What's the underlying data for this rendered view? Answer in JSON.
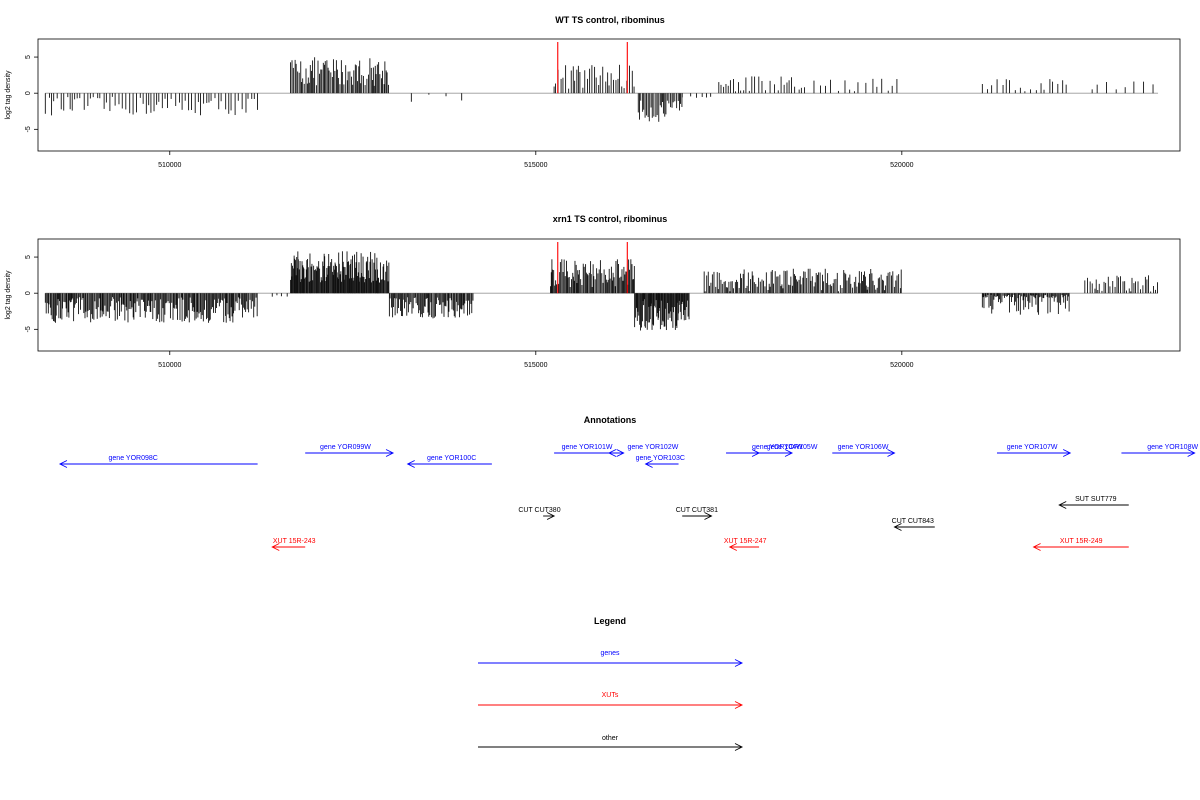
{
  "colors": {
    "gene": "#0000ff",
    "xut": "#ff0000",
    "other": "#000000",
    "axis": "#000000",
    "zero_line": "#999999",
    "highlight": "#ff0000"
  },
  "chart_data": [
    {
      "type": "bar",
      "title": "WT TS control, ribominus",
      "ylabel": "log2 tag density",
      "xlim": [
        508200,
        523800
      ],
      "ylim": [
        -8,
        7.5
      ],
      "xticks": [
        510000,
        515000,
        520000
      ],
      "xtick_labels": [
        "510000",
        "515000",
        "520000"
      ],
      "yticks": [
        -5,
        0,
        5
      ],
      "ytick_labels": [
        "-5",
        "0",
        "5"
      ],
      "highlight_positions": [
        515300,
        516250
      ],
      "segments": [
        {
          "start": 508300,
          "end": 511200,
          "mean": -1.8,
          "amp": 1.3,
          "step": 45
        },
        {
          "start": 511650,
          "end": 513000,
          "mean": 3.0,
          "amp": 2.0,
          "step": 18
        },
        {
          "start": 513300,
          "end": 514100,
          "mean": -0.6,
          "amp": 0.7,
          "step": 200
        },
        {
          "start": 515250,
          "end": 516350,
          "mean": 2.3,
          "amp": 1.8,
          "step": 30
        },
        {
          "start": 516400,
          "end": 517000,
          "mean": -2.5,
          "amp": 1.5,
          "step": 20
        },
        {
          "start": 517000,
          "end": 517400,
          "mean": -0.4,
          "amp": 0.4,
          "step": 90
        },
        {
          "start": 517500,
          "end": 518700,
          "mean": 1.2,
          "amp": 1.2,
          "step": 45
        },
        {
          "start": 518800,
          "end": 520000,
          "mean": 1.0,
          "amp": 1.2,
          "step": 80
        },
        {
          "start": 521100,
          "end": 522300,
          "mean": 1.0,
          "amp": 1.1,
          "step": 60
        },
        {
          "start": 522600,
          "end": 523500,
          "mean": 0.8,
          "amp": 0.9,
          "step": 100
        }
      ]
    },
    {
      "type": "bar",
      "title": "xrn1 TS control, ribominus",
      "ylabel": "log2 tag density",
      "xlim": [
        508200,
        523800
      ],
      "ylim": [
        -8,
        7.5
      ],
      "xticks": [
        510000,
        515000,
        520000
      ],
      "xtick_labels": [
        "510000",
        "515000",
        "520000"
      ],
      "yticks": [
        -5,
        0,
        5
      ],
      "ytick_labels": [
        "-5",
        "0",
        "5"
      ],
      "highlight_positions": [
        515300,
        516250
      ],
      "segments": [
        {
          "start": 508300,
          "end": 511200,
          "mean": -2.3,
          "amp": 1.8,
          "step": 14
        },
        {
          "start": 511400,
          "end": 511650,
          "mean": -0.5,
          "amp": 0.4,
          "step": 70
        },
        {
          "start": 511650,
          "end": 513000,
          "mean": 3.6,
          "amp": 2.2,
          "step": 10
        },
        {
          "start": 513000,
          "end": 514150,
          "mean": -2.0,
          "amp": 1.5,
          "step": 14
        },
        {
          "start": 515200,
          "end": 516350,
          "mean": 2.8,
          "amp": 2.0,
          "step": 14
        },
        {
          "start": 516350,
          "end": 517100,
          "mean": -3.0,
          "amp": 2.2,
          "step": 10
        },
        {
          "start": 517300,
          "end": 520000,
          "mean": 1.8,
          "amp": 1.6,
          "step": 18
        },
        {
          "start": 521100,
          "end": 522300,
          "mean": -0.8,
          "amp": 2.2,
          "step": 14
        },
        {
          "start": 522500,
          "end": 523500,
          "mean": 1.3,
          "amp": 1.2,
          "step": 28
        }
      ]
    },
    {
      "type": "annotation",
      "title": "Annotations",
      "features": [
        {
          "label": "gene YOR098C",
          "kind": "gene",
          "start": 511200,
          "end": 508500,
          "row": 1,
          "label_pos": 509500
        },
        {
          "label": "gene YOR099W",
          "kind": "gene",
          "start": 511850,
          "end": 513050,
          "row": 0,
          "label_pos": 512400
        },
        {
          "label": "gene YOR100C",
          "kind": "gene",
          "start": 514400,
          "end": 513250,
          "row": 1,
          "label_pos": 513850
        },
        {
          "label": "gene YOR101W",
          "kind": "gene",
          "start": 515250,
          "end": 516200,
          "row": 0,
          "label_pos": 515700
        },
        {
          "label": "gene YOR102W",
          "kind": "gene",
          "start": 516200,
          "end": 516000,
          "row": 0,
          "label_pos": 516600
        },
        {
          "label": "gene YOR103C",
          "kind": "gene",
          "start": 516950,
          "end": 516500,
          "row": 1,
          "label_pos": 516700
        },
        {
          "label": "gene YOR104W",
          "kind": "gene",
          "start": 517600,
          "end": 518050,
          "row": 0,
          "label_pos": 518300
        },
        {
          "label": "gene YOR105W",
          "kind": "gene",
          "start": 517600,
          "end": 518500,
          "row": 0,
          "label_pos": 518500
        },
        {
          "label": "gene YOR106W",
          "kind": "gene",
          "start": 519050,
          "end": 519900,
          "row": 0,
          "label_pos": 519470
        },
        {
          "label": "gene YOR107W",
          "kind": "gene",
          "start": 521300,
          "end": 522300,
          "row": 0,
          "label_pos": 521780
        },
        {
          "label": "gene YOR108W",
          "kind": "gene",
          "start": 523000,
          "end": 524000,
          "row": 0,
          "label_pos": 523700
        },
        {
          "label": "CUT CUT380",
          "kind": "other",
          "start": 515100,
          "end": 515250,
          "row": 3,
          "label_pos": 515050
        },
        {
          "label": "CUT CUT381",
          "kind": "other",
          "start": 517000,
          "end": 517400,
          "row": 3,
          "label_pos": 517200
        },
        {
          "label": "CUT CUT843",
          "kind": "other",
          "start": 520450,
          "end": 519900,
          "row": 4,
          "label_pos": 520150
        },
        {
          "label": "SUT SUT779",
          "kind": "other",
          "start": 523100,
          "end": 522150,
          "row": 2,
          "label_pos": 522650
        },
        {
          "label": "XUT 15R-243",
          "kind": "xut",
          "start": 511850,
          "end": 511400,
          "row": 5,
          "label_pos": 511700
        },
        {
          "label": "XUT 15R-247",
          "kind": "xut",
          "start": 518050,
          "end": 517650,
          "row": 5,
          "label_pos": 517860
        },
        {
          "label": "XUT 15R-249",
          "kind": "xut",
          "start": 523100,
          "end": 521800,
          "row": 5,
          "label_pos": 522450
        }
      ]
    },
    {
      "type": "legend",
      "title": "Legend",
      "entries": [
        {
          "label": "genes",
          "kind": "gene"
        },
        {
          "label": "XUTs",
          "kind": "xut"
        },
        {
          "label": "other",
          "kind": "other"
        }
      ]
    }
  ]
}
